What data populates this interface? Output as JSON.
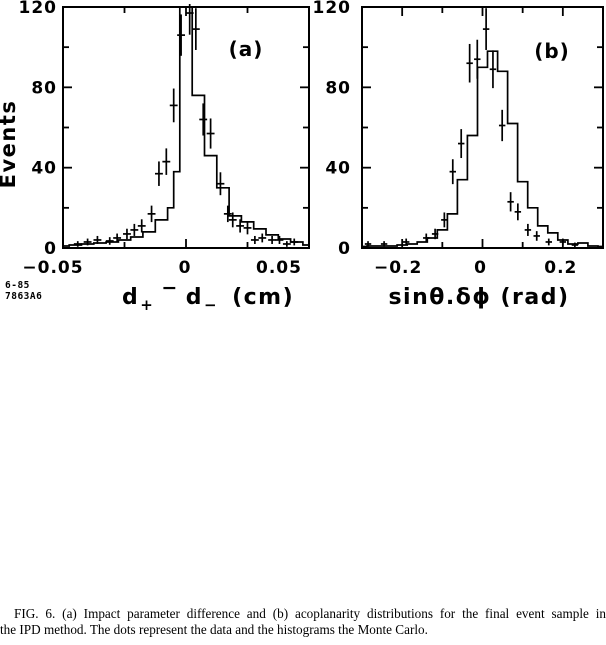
{
  "page": {
    "background": "#ffffff",
    "ink": "#000000"
  },
  "figure_label": {
    "line1": "6-85",
    "line2": "7863A6"
  },
  "caption": {
    "line1": "FIG. 6. (a) Impact parameter difference and (b) acoplanarity distributions for the final event sample in",
    "line2": "the IPD method. The dots represent the data and the histograms the Monte Carlo."
  },
  "chart_data": [
    {
      "type": "bar",
      "subtype": "step-histogram-with-data-points",
      "panel_tag": "(a)",
      "title": "",
      "xlabel": "d+ − d−  (cm)",
      "xlabel_parts": {
        "base1": "d",
        "sub1": "+",
        "operator": "−",
        "base2": "d",
        "sub2": "−",
        "units": "(cm)"
      },
      "ylabel": "Events",
      "xlim": [
        -0.05,
        0.05
      ],
      "ylim": [
        0,
        120
      ],
      "grid": false,
      "legend": "none",
      "x_ticks": [
        {
          "v": -0.05,
          "label": "−0.05",
          "dx": -10
        },
        {
          "v": -0.025,
          "label": ""
        },
        {
          "v": 0,
          "label": "0",
          "dx": -1
        },
        {
          "v": 0.025,
          "label": ""
        },
        {
          "v": 0.05,
          "label": "0.05",
          "dx": -30
        }
      ],
      "y_ticks": [
        {
          "v": 0,
          "label": "0"
        },
        {
          "v": 20,
          "label": ""
        },
        {
          "v": 40,
          "label": "40"
        },
        {
          "v": 60,
          "label": ""
        },
        {
          "v": 80,
          "label": "80"
        },
        {
          "v": 100,
          "label": ""
        },
        {
          "v": 120,
          "label": "120"
        }
      ],
      "monte_carlo_bins": {
        "x_edges": [
          -0.05,
          -0.0475,
          -0.0425,
          -0.0375,
          -0.0325,
          -0.0275,
          -0.0225,
          -0.0175,
          -0.0125,
          -0.0075,
          -0.005,
          -0.0025,
          0.0025,
          0.0075,
          0.0125,
          0.0175,
          0.0225,
          0.0275,
          0.0325,
          0.0375,
          0.0425,
          0.0475,
          0.05
        ],
        "counts": [
          1,
          1.5,
          2,
          2.5,
          3,
          4,
          5.5,
          8,
          14,
          20,
          38,
          120,
          76,
          46,
          30,
          16,
          13,
          9.5,
          6.5,
          4.5,
          3,
          1.5
        ]
      },
      "data_points": {
        "x": [
          -0.044,
          -0.04,
          -0.036,
          -0.031,
          -0.028,
          -0.024,
          -0.021,
          -0.018,
          -0.014,
          -0.011,
          -0.008,
          -0.005,
          -0.002,
          0.0015,
          0.004,
          0.007,
          0.01,
          0.014,
          0.017,
          0.019,
          0.022,
          0.025,
          0.028,
          0.031,
          0.035,
          0.038,
          0.041,
          0.044
        ],
        "y": [
          2,
          3,
          4,
          3.5,
          5,
          7,
          9,
          11,
          17,
          37,
          43,
          71,
          106,
          117,
          109,
          64,
          57,
          32,
          17,
          14,
          11,
          10,
          4,
          5,
          4,
          4,
          2,
          3
        ],
        "yerr": [
          1.4,
          1.7,
          2,
          1.9,
          2.2,
          2.6,
          3,
          3.3,
          4.1,
          6.1,
          6.6,
          8.4,
          10.3,
          10.8,
          10.4,
          8,
          7.5,
          5.7,
          4.1,
          3.7,
          3.3,
          3.2,
          2,
          2.2,
          2,
          2,
          1.4,
          1.7
        ],
        "xerr": 0.0016
      }
    },
    {
      "type": "bar",
      "subtype": "step-histogram-with-data-points",
      "panel_tag": "(b)",
      "title": "",
      "xlabel": "sinθ.δϕ  (rad)",
      "ylabel": "",
      "xlim": [
        -0.3,
        0.3
      ],
      "ylim": [
        0,
        120
      ],
      "grid": false,
      "legend": "none",
      "x_ticks": [
        {
          "v": -0.2,
          "label": "−0.2",
          "dx": -4
        },
        {
          "v": -0.1,
          "label": ""
        },
        {
          "v": 0,
          "label": "0",
          "dx": -2
        },
        {
          "v": 0.1,
          "label": ""
        },
        {
          "v": 0.2,
          "label": "0.2",
          "dx": -2
        }
      ],
      "y_ticks": [
        {
          "v": 0,
          "label": "0"
        },
        {
          "v": 20,
          "label": ""
        },
        {
          "v": 40,
          "label": "40"
        },
        {
          "v": 60,
          "label": ""
        },
        {
          "v": 80,
          "label": "80"
        },
        {
          "v": 100,
          "label": ""
        },
        {
          "v": 120,
          "label": "120"
        }
      ],
      "monte_carlo_bins": {
        "x_edges": [
          -0.3,
          -0.2875,
          -0.2625,
          -0.2375,
          -0.2125,
          -0.1875,
          -0.1625,
          -0.1375,
          -0.1125,
          -0.0875,
          -0.0625,
          -0.0375,
          -0.0125,
          0.0125,
          0.0375,
          0.0625,
          0.0875,
          0.1125,
          0.1375,
          0.1625,
          0.1875,
          0.2125,
          0.2375,
          0.2625,
          0.2875,
          0.3
        ],
        "counts": [
          0.75,
          1,
          1,
          1,
          1.5,
          2,
          3,
          5,
          9,
          17,
          34,
          56,
          90,
          98,
          88,
          62,
          33,
          20,
          11,
          7.5,
          4,
          2,
          2.5,
          1,
          0.75
        ]
      },
      "data_points": {
        "x": [
          -0.285,
          -0.245,
          -0.19,
          -0.14,
          -0.118,
          -0.095,
          -0.074,
          -0.053,
          -0.032,
          -0.013,
          0.009,
          0.026,
          0.049,
          0.07,
          0.088,
          0.113,
          0.135,
          0.165,
          0.2,
          0.23
        ],
        "y": [
          2,
          2,
          3,
          5,
          7,
          14,
          38,
          52,
          92,
          94,
          109,
          89,
          61,
          23,
          18,
          9,
          6,
          3,
          3,
          1.5
        ],
        "yerr": [
          1.4,
          1.4,
          1.7,
          2.2,
          2.6,
          3.7,
          6.2,
          7.2,
          9.6,
          9.7,
          10.4,
          9.4,
          7.8,
          4.8,
          4.2,
          3,
          2.4,
          1.7,
          1.7,
          1.2
        ],
        "xerr": 0.008
      }
    }
  ]
}
